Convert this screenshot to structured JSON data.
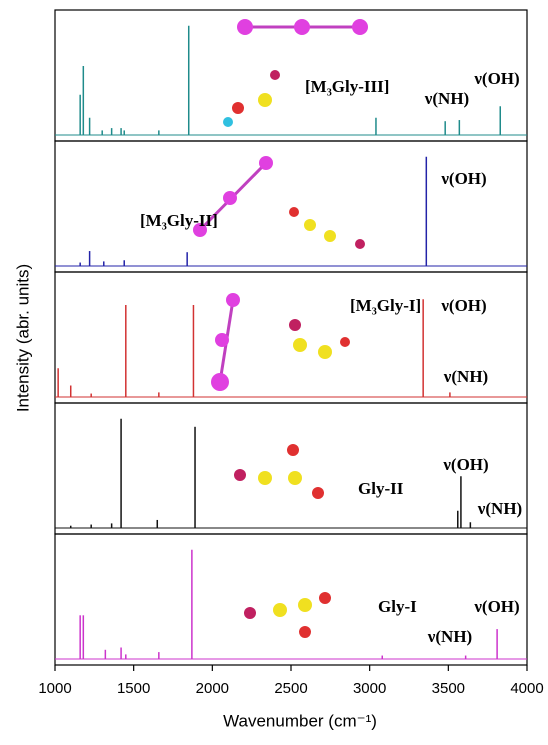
{
  "chart_data": {
    "type": "stick",
    "xlabel": "Wavenumber (cm⁻¹)",
    "ylabel": "Intensity (abr. units)",
    "xlim": [
      1000,
      4000
    ],
    "xticks": [
      1000,
      1500,
      2000,
      2500,
      3000,
      3500,
      4000
    ],
    "ylim": [
      0,
      1
    ],
    "panels": [
      {
        "color": "#1f8b8b",
        "annotations": [
          "[M₃Gly-III]",
          "ν(NH)",
          "ν(OH)"
        ],
        "x": [
          1160,
          1180,
          1220,
          1300,
          1360,
          1420,
          1440,
          1660,
          1850,
          3040,
          3480,
          3570,
          3830
        ],
        "values": [
          0.35,
          0.6,
          0.15,
          0.04,
          0.06,
          0.06,
          0.04,
          0.04,
          0.95,
          0.15,
          0.12,
          0.13,
          0.25
        ]
      },
      {
        "color": "#2323a8",
        "annotations": [
          "[M₃Gly-II]",
          "ν(OH)"
        ],
        "x": [
          1160,
          1220,
          1310,
          1440,
          1840,
          3360
        ],
        "values": [
          0.03,
          0.13,
          0.04,
          0.05,
          0.12,
          0.95
        ]
      },
      {
        "color": "#d23232",
        "annotations": [
          "[M₃Gly-I]",
          "ν(OH)",
          "ν(NH)"
        ],
        "x": [
          1020,
          1100,
          1230,
          1450,
          1660,
          1880,
          3340,
          3510
        ],
        "values": [
          0.25,
          0.1,
          0.03,
          0.8,
          0.04,
          0.8,
          0.85,
          0.04
        ]
      },
      {
        "color": "#111111",
        "annotations": [
          "Gly-II",
          "ν(OH)",
          "ν(NH)"
        ],
        "x": [
          1100,
          1230,
          1360,
          1420,
          1650,
          1890,
          3560,
          3580,
          3640
        ],
        "values": [
          0.02,
          0.03,
          0.04,
          0.95,
          0.07,
          0.88,
          0.15,
          0.45,
          0.05
        ]
      },
      {
        "color": "#cc33cc",
        "annotations": [
          "Gly-I",
          "ν(NH)",
          "ν(OH)"
        ],
        "x": [
          1160,
          1180,
          1320,
          1420,
          1450,
          1660,
          1870,
          3080,
          3610,
          3810
        ],
        "values": [
          0.38,
          0.38,
          0.08,
          0.1,
          0.04,
          0.06,
          0.95,
          0.03,
          0.03,
          0.26
        ]
      }
    ]
  }
}
